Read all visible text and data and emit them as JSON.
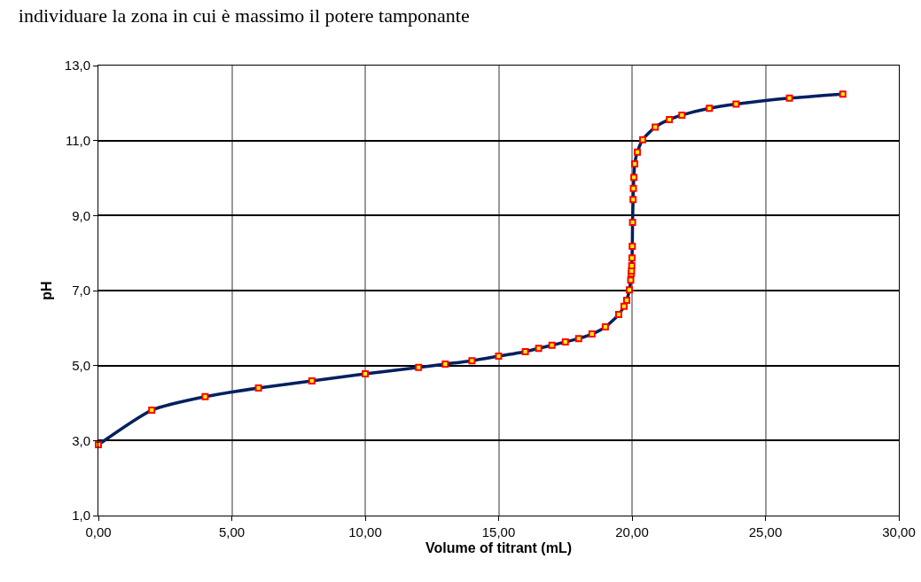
{
  "chart_data": {
    "type": "line",
    "title": "individuare la zona in cui è massimo il potere tamponante",
    "xlabel": "Volume of titrant (mL)",
    "ylabel": "pH",
    "x": [
      0,
      2,
      4,
      6,
      8,
      10,
      12,
      13,
      14,
      15,
      16,
      16.5,
      17,
      17.5,
      18,
      18.5,
      19,
      19.5,
      19.7,
      19.8,
      19.9,
      19.95,
      19.97,
      19.98,
      19.99,
      20,
      20.01,
      20.02,
      20.04,
      20.05,
      20.07,
      20.1,
      20.2,
      20.4,
      20.87,
      21.4,
      21.87,
      22.9,
      23.9,
      25.9,
      27.9
    ],
    "series": [
      {
        "color": "#002060",
        "values": [
          2.89,
          3.81,
          4.17,
          4.4,
          4.59,
          4.78,
          4.95,
          5.04,
          5.13,
          5.25,
          5.37,
          5.46,
          5.54,
          5.63,
          5.72,
          5.84,
          6.03,
          6.36,
          6.58,
          6.74,
          7.02,
          7.28,
          7.45,
          7.52,
          7.66,
          7.87,
          8.18,
          8.82,
          9.43,
          9.72,
          10.02,
          10.38,
          10.69,
          11.02,
          11.36,
          11.56,
          11.68,
          11.86,
          11.97,
          12.13,
          12.24
        ]
      }
    ],
    "xlim": [
      0,
      30
    ],
    "xticks": [
      {
        "value": 0,
        "label": "0,00"
      },
      {
        "value": 5,
        "label": "5,00"
      },
      {
        "value": 10,
        "label": "10,00"
      },
      {
        "value": 15,
        "label": "15,00"
      },
      {
        "value": 20,
        "label": "20,00"
      },
      {
        "value": 25,
        "label": "25,00"
      },
      {
        "value": 30,
        "label": "30,00"
      }
    ],
    "ylim": [
      1,
      13
    ],
    "yticks": [
      {
        "value": 1,
        "label": "1,0"
      },
      {
        "value": 3,
        "label": "3,0"
      },
      {
        "value": 5,
        "label": "5,0"
      },
      {
        "value": 7,
        "label": "7,0"
      },
      {
        "value": 9,
        "label": "9,0"
      },
      {
        "value": 11,
        "label": "11,0"
      },
      {
        "value": 13,
        "label": "13,0"
      }
    ],
    "grid": true,
    "legend": false,
    "marker": "square",
    "line_style": "solid"
  }
}
